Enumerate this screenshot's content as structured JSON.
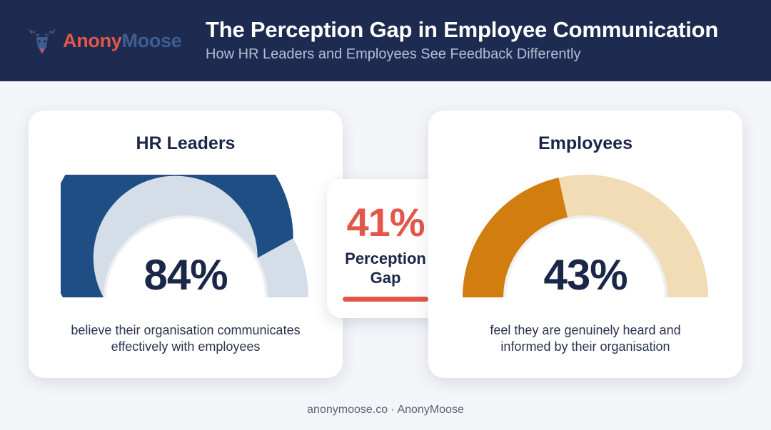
{
  "brand": {
    "name_part1": "Anony",
    "name_part2": "Moose",
    "logo_icon": "moose-head-icon"
  },
  "header": {
    "title": "The Perception Gap in Employee Communication",
    "subtitle": "How HR Leaders and Employees See Feedback Differently"
  },
  "cards": {
    "hr": {
      "title": "HR Leaders",
      "value_label": "84%",
      "value": 0.84,
      "caption_line1": "believe their organisation communicates",
      "caption_line2": "effectively with employees",
      "fill_color": "#1f4e85",
      "track_color": "#d4dde8"
    },
    "employees": {
      "title": "Employees",
      "value_label": "43%",
      "value": 0.43,
      "caption_line1": "feel they are genuinely heard and",
      "caption_line2": "informed by their organisation",
      "fill_color": "#d17d0f",
      "track_color": "#f2dcb6"
    }
  },
  "gap": {
    "value_label": "41%",
    "label_line1": "Perception",
    "label_line2": "Gap",
    "accent_color": "#e2574a"
  },
  "footer": {
    "text": "anonymoose.co · AnonyMoose"
  }
}
